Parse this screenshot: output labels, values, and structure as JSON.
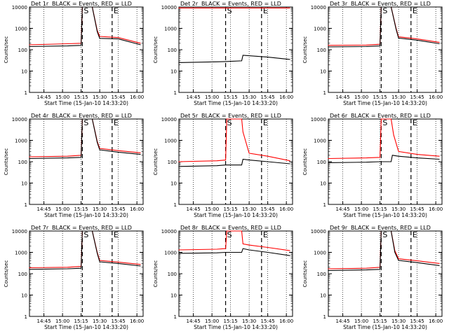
{
  "common": {
    "subtitle": "BLACK = Events, RED = LLD",
    "xlabel": "Start Time (15-Jan-10 14:33:20)",
    "ylabel": "Counts/sec",
    "yscale": "log",
    "ylim": [
      1,
      10000
    ],
    "y_ticks": [
      "1",
      "10",
      "100",
      "1000",
      "10000"
    ],
    "x_ticks": [
      "14:45",
      "15:00",
      "15:15",
      "15:30",
      "15:45",
      "16:00"
    ],
    "markers": [
      {
        "label": "S",
        "time": "15:16"
      },
      {
        "label": "E",
        "time": "15:40"
      }
    ],
    "colors": {
      "events": "#000000",
      "lld": "#ff0000"
    }
  },
  "chart_data": [
    {
      "type": "line",
      "title": "Det 1r",
      "x_ticks": [
        "14:45",
        "15:00",
        "15:15",
        "15:30",
        "15:45",
        "16:00"
      ],
      "markers": [
        {
          "label": "S",
          "time": "15:16"
        },
        {
          "label": "E",
          "time": "15:40"
        }
      ],
      "series": [
        {
          "color": "#ff0000",
          "x": [
            "14:33",
            "15:04",
            "15:15",
            "15:16",
            "15:24",
            "15:28",
            "15:30",
            "15:45",
            "16:03"
          ],
          "values": [
            170,
            190,
            200,
            10000,
            10000,
            800,
            420,
            370,
            200
          ]
        },
        {
          "color": "#000000",
          "x": [
            "14:33",
            "15:04",
            "15:15",
            "15:16",
            "15:24",
            "15:28",
            "15:30",
            "15:45",
            "16:03"
          ],
          "values": [
            140,
            150,
            160,
            10000,
            10000,
            700,
            340,
            320,
            170
          ]
        }
      ]
    },
    {
      "type": "line",
      "title": "Det 2r",
      "x_ticks": [
        "14:45",
        "15:00",
        "15:15",
        "15:30",
        "15:45",
        "16:00"
      ],
      "markers": [
        {
          "label": "S",
          "time": "15:11"
        },
        {
          "label": "E",
          "time": "15:40"
        }
      ],
      "series": [
        {
          "color": "#ff0000",
          "x": [
            "14:33",
            "15:04",
            "15:15",
            "15:28",
            "15:45",
            "16:03"
          ],
          "values": [
            9000,
            9000,
            9000,
            9000,
            9000,
            9000
          ]
        },
        {
          "color": "#000000",
          "x": [
            "14:33",
            "15:04",
            "15:11",
            "15:24",
            "15:25",
            "15:45",
            "16:03"
          ],
          "values": [
            25,
            27,
            28,
            30,
            55,
            45,
            35
          ]
        }
      ]
    },
    {
      "type": "line",
      "title": "Det 3r",
      "x_ticks": [
        "14:45",
        "15:00",
        "15:15",
        "15:30",
        "15:45",
        "16:00"
      ],
      "markers": [
        {
          "label": "S",
          "time": "15:16"
        },
        {
          "label": "E",
          "time": "15:40"
        }
      ],
      "series": [
        {
          "color": "#ff0000",
          "x": [
            "14:33",
            "15:04",
            "15:15",
            "15:16",
            "15:24",
            "15:28",
            "15:30",
            "15:45",
            "16:03"
          ],
          "values": [
            160,
            165,
            180,
            10000,
            10000,
            1000,
            400,
            320,
            220
          ]
        },
        {
          "color": "#000000",
          "x": [
            "14:33",
            "15:04",
            "15:15",
            "15:16",
            "15:24",
            "15:28",
            "15:30",
            "15:45",
            "16:03"
          ],
          "values": [
            135,
            140,
            150,
            10000,
            10000,
            900,
            350,
            280,
            190
          ]
        }
      ]
    },
    {
      "type": "line",
      "title": "Det 4r",
      "x_ticks": [
        "14:45",
        "15:00",
        "15:15",
        "15:30",
        "15:45",
        "16:00"
      ],
      "markers": [
        {
          "label": "S",
          "time": "15:16"
        },
        {
          "label": "E",
          "time": "15:40"
        }
      ],
      "series": [
        {
          "color": "#ff0000",
          "x": [
            "14:33",
            "15:04",
            "15:15",
            "15:16",
            "15:24",
            "15:28",
            "15:30",
            "15:45",
            "16:03"
          ],
          "values": [
            170,
            180,
            200,
            10000,
            10000,
            900,
            420,
            330,
            260
          ]
        },
        {
          "color": "#000000",
          "x": [
            "14:33",
            "15:04",
            "15:15",
            "15:16",
            "15:24",
            "15:28",
            "15:30",
            "15:45",
            "16:03"
          ],
          "values": [
            140,
            150,
            160,
            10000,
            10000,
            800,
            360,
            280,
            220
          ]
        }
      ]
    },
    {
      "type": "line",
      "title": "Det 5r",
      "x_ticks": [
        "14:45",
        "15:00",
        "15:15",
        "15:30",
        "15:45",
        "16:00"
      ],
      "markers": [
        {
          "label": "S",
          "time": "15:11"
        },
        {
          "label": "E",
          "time": "15:40"
        }
      ],
      "series": [
        {
          "color": "#ff0000",
          "x": [
            "14:33",
            "15:04",
            "15:11",
            "15:12",
            "15:24",
            "15:25",
            "15:30",
            "15:45",
            "16:03"
          ],
          "values": [
            100,
            110,
            120,
            10000,
            10000,
            2500,
            250,
            180,
            110
          ]
        },
        {
          "color": "#000000",
          "x": [
            "14:33",
            "15:04",
            "15:11",
            "15:24",
            "15:25",
            "15:30",
            "15:45",
            "16:03"
          ],
          "values": [
            60,
            65,
            70,
            70,
            130,
            120,
            100,
            80
          ]
        }
      ]
    },
    {
      "type": "line",
      "title": "Det 6r",
      "x_ticks": [
        "14:45",
        "15:00",
        "15:15",
        "15:30",
        "15:45",
        "16:00"
      ],
      "markers": [
        {
          "label": "S",
          "time": "15:16"
        },
        {
          "label": "E",
          "time": "15:40"
        }
      ],
      "series": [
        {
          "color": "#ff0000",
          "x": [
            "14:33",
            "15:04",
            "15:15",
            "15:16",
            "15:24",
            "15:26",
            "15:30",
            "15:45",
            "16:03"
          ],
          "values": [
            140,
            150,
            160,
            10000,
            10000,
            1800,
            300,
            220,
            180
          ]
        },
        {
          "color": "#000000",
          "x": [
            "14:33",
            "15:04",
            "15:15",
            "15:24",
            "15:25",
            "15:30",
            "15:45",
            "16:03"
          ],
          "values": [
            90,
            95,
            100,
            100,
            200,
            180,
            150,
            130
          ]
        }
      ]
    },
    {
      "type": "line",
      "title": "Det 7r",
      "x_ticks": [
        "14:45",
        "15:00",
        "15:15",
        "15:30",
        "15:45",
        "16:00"
      ],
      "markers": [
        {
          "label": "S",
          "time": "15:16"
        },
        {
          "label": "E",
          "time": "15:40"
        }
      ],
      "series": [
        {
          "color": "#ff0000",
          "x": [
            "14:33",
            "15:04",
            "15:15",
            "15:16",
            "15:24",
            "15:28",
            "15:30",
            "15:45",
            "16:03"
          ],
          "values": [
            190,
            200,
            220,
            10000,
            10000,
            1000,
            420,
            350,
            270
          ]
        },
        {
          "color": "#000000",
          "x": [
            "14:33",
            "15:04",
            "15:15",
            "15:16",
            "15:24",
            "15:28",
            "15:30",
            "15:45",
            "16:03"
          ],
          "values": [
            160,
            170,
            180,
            10000,
            10000,
            900,
            360,
            300,
            230
          ]
        }
      ]
    },
    {
      "type": "line",
      "title": "Det 8r",
      "x_ticks": [
        "14:45",
        "15:00",
        "15:15",
        "15:30",
        "15:45",
        "16:00"
      ],
      "markers": [
        {
          "label": "S",
          "time": "15:11"
        },
        {
          "label": "E",
          "time": "15:40"
        }
      ],
      "series": [
        {
          "color": "#ff0000",
          "x": [
            "14:33",
            "15:04",
            "15:11",
            "15:12",
            "15:24",
            "15:25",
            "15:30",
            "15:45",
            "16:03"
          ],
          "values": [
            1300,
            1400,
            1500,
            10000,
            10000,
            2500,
            2200,
            1700,
            1200
          ]
        },
        {
          "color": "#000000",
          "x": [
            "14:33",
            "15:04",
            "15:11",
            "15:24",
            "15:25",
            "15:30",
            "15:45",
            "16:03"
          ],
          "values": [
            900,
            950,
            1000,
            1000,
            1500,
            1300,
            1000,
            700
          ]
        }
      ]
    },
    {
      "type": "line",
      "title": "Det 9r",
      "x_ticks": [
        "14:45",
        "15:00",
        "15:15",
        "15:30",
        "15:45",
        "16:00"
      ],
      "markers": [
        {
          "label": "S",
          "time": "15:16"
        },
        {
          "label": "E",
          "time": "15:40"
        }
      ],
      "series": [
        {
          "color": "#ff0000",
          "x": [
            "14:33",
            "15:04",
            "15:15",
            "15:16",
            "15:24",
            "15:27",
            "15:30",
            "15:45",
            "16:03"
          ],
          "values": [
            170,
            180,
            200,
            10000,
            10000,
            1200,
            500,
            400,
            300
          ]
        },
        {
          "color": "#000000",
          "x": [
            "14:33",
            "15:04",
            "15:15",
            "15:16",
            "15:24",
            "15:27",
            "15:30",
            "15:45",
            "16:03"
          ],
          "values": [
            140,
            150,
            160,
            10000,
            10000,
            1000,
            420,
            330,
            240
          ]
        }
      ]
    }
  ]
}
